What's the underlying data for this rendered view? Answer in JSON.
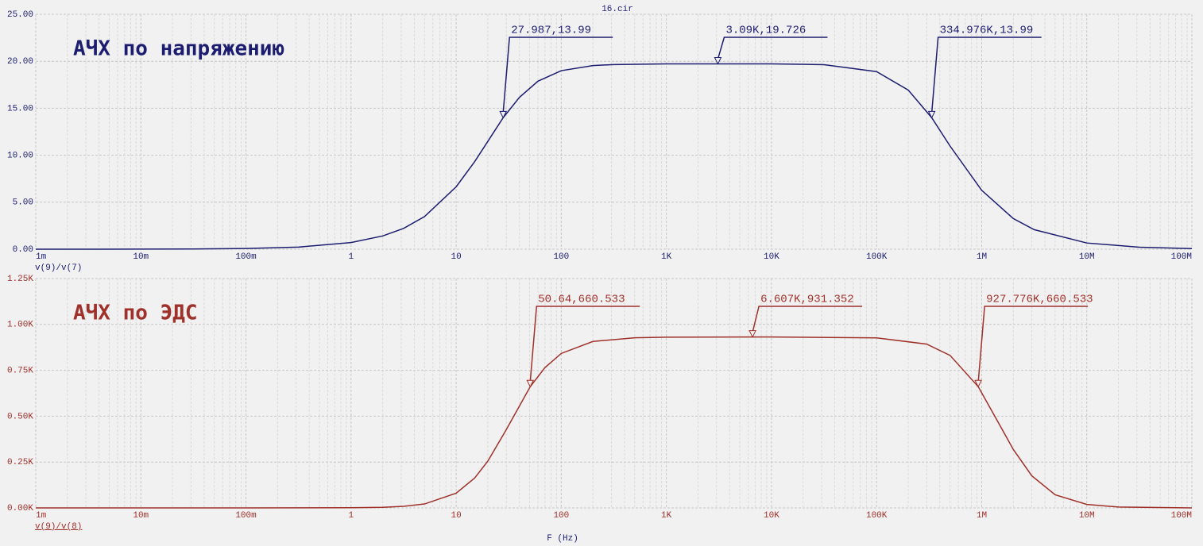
{
  "chart_data": [
    {
      "type": "line",
      "title": "16.cir",
      "label": "АЧХ по напряжению",
      "xscale": "log",
      "grid": true,
      "xlim": [
        0.001,
        100000000
      ],
      "xticks": [
        {
          "value": 0.001,
          "label": "1m"
        },
        {
          "value": 0.01,
          "label": "10m"
        },
        {
          "value": 0.1,
          "label": "100m"
        },
        1,
        10,
        100,
        {
          "value": 1000,
          "label": "1K"
        },
        {
          "value": 10000,
          "label": "10K"
        },
        {
          "value": 100000,
          "label": "100K"
        },
        {
          "value": 1000000,
          "label": "1M"
        },
        {
          "value": 10000000,
          "label": "10M"
        },
        {
          "value": 100000000,
          "label": "100M"
        }
      ],
      "ylim": [
        0,
        25
      ],
      "yticks": [
        {
          "value": 0,
          "label": "0.00"
        },
        {
          "value": 5,
          "label": "5.00"
        },
        {
          "value": 10,
          "label": "10.00"
        },
        {
          "value": 15,
          "label": "15.00"
        },
        {
          "value": 20,
          "label": "20.00"
        },
        {
          "value": 25,
          "label": "25.00"
        }
      ],
      "x": [
        0.001,
        0.00316,
        0.01,
        0.0316,
        0.1,
        0.316,
        1,
        2,
        3.16,
        5,
        10,
        15,
        20,
        27.987,
        40,
        60,
        100,
        200,
        316,
        1000,
        3090,
        10000,
        31600,
        100000,
        200000,
        334976,
        500000,
        1000000,
        2000000,
        3160000,
        10000000,
        31600000,
        100000000
      ],
      "series": [
        {
          "name": "v(9)/v(7)",
          "color": "#1c1c70",
          "values": [
            0.001,
            0.0022,
            0.007,
            0.022,
            0.07,
            0.223,
            0.705,
            1.41,
            2.21,
            3.47,
            6.64,
            9.32,
            11.47,
            13.99,
            16.16,
            17.88,
            19.0,
            19.54,
            19.65,
            19.72,
            19.726,
            19.72,
            19.64,
            18.9,
            16.94,
            13.99,
            10.98,
            6.27,
            3.26,
            2.08,
            0.66,
            0.21,
            0.066
          ]
        }
      ],
      "markers": [
        {
          "x": 27.987,
          "y": 13.99,
          "label": "27.987,13.99"
        },
        {
          "x": 3090,
          "y": 19.726,
          "label": "3.09K,19.726"
        },
        {
          "x": 334976,
          "y": 13.99,
          "label": "334.976K,13.99"
        }
      ]
    },
    {
      "type": "line",
      "label": "АЧХ по ЭДС",
      "xlabel": "F (Hz)",
      "xscale": "log",
      "grid": true,
      "xlim": [
        0.001,
        100000000
      ],
      "xticks": [
        {
          "value": 0.001,
          "label": "1m"
        },
        {
          "value": 0.01,
          "label": "10m"
        },
        {
          "value": 0.1,
          "label": "100m"
        },
        1,
        10,
        100,
        {
          "value": 1000,
          "label": "1K"
        },
        {
          "value": 10000,
          "label": "10K"
        },
        {
          "value": 100000,
          "label": "100K"
        },
        {
          "value": 1000000,
          "label": "1M"
        },
        {
          "value": 10000000,
          "label": "10M"
        },
        {
          "value": 100000000,
          "label": "100M"
        }
      ],
      "ylim": [
        0,
        1250
      ],
      "yticks": [
        {
          "value": 0,
          "label": "0.00K"
        },
        {
          "value": 250,
          "label": "0.25K"
        },
        {
          "value": 500,
          "label": "0.50K"
        },
        {
          "value": 750,
          "label": "0.75K"
        },
        {
          "value": 1000,
          "label": "1.00K"
        },
        {
          "value": 1250,
          "label": "1.25K"
        }
      ],
      "x": [
        0.001,
        0.01,
        0.1,
        1,
        2,
        3.16,
        5,
        10,
        15,
        20,
        30,
        50.64,
        70,
        100,
        200,
        500,
        1000,
        6607,
        10000,
        100000,
        300000,
        500000,
        927776,
        1500000,
        2000000,
        3000000,
        5000000,
        10000000,
        20000000,
        100000000
      ],
      "series": [
        {
          "name": "v(9)/v(8)",
          "color": "#a0302a",
          "values": [
            0,
            0.0001,
            0.0088,
            0.875,
            3.49,
            8.68,
            21.4,
            80.1,
            162.7,
            254.6,
            427,
            660.533,
            765,
            841.9,
            907.2,
            927.4,
            930.4,
            931.352,
            931.3,
            926.9,
            892.7,
            831.3,
            660.533,
            447.2,
            318.5,
            174.7,
            71.5,
            18.97,
            4.8,
            0.19
          ]
        }
      ],
      "markers": [
        {
          "x": 50.64,
          "y": 660.533,
          "label": "50.64,660.533"
        },
        {
          "x": 6607,
          "y": 931.352,
          "label": "6.607K,931.352"
        },
        {
          "x": 927776,
          "y": 660.533,
          "label": "927.776K,660.533"
        }
      ]
    }
  ]
}
